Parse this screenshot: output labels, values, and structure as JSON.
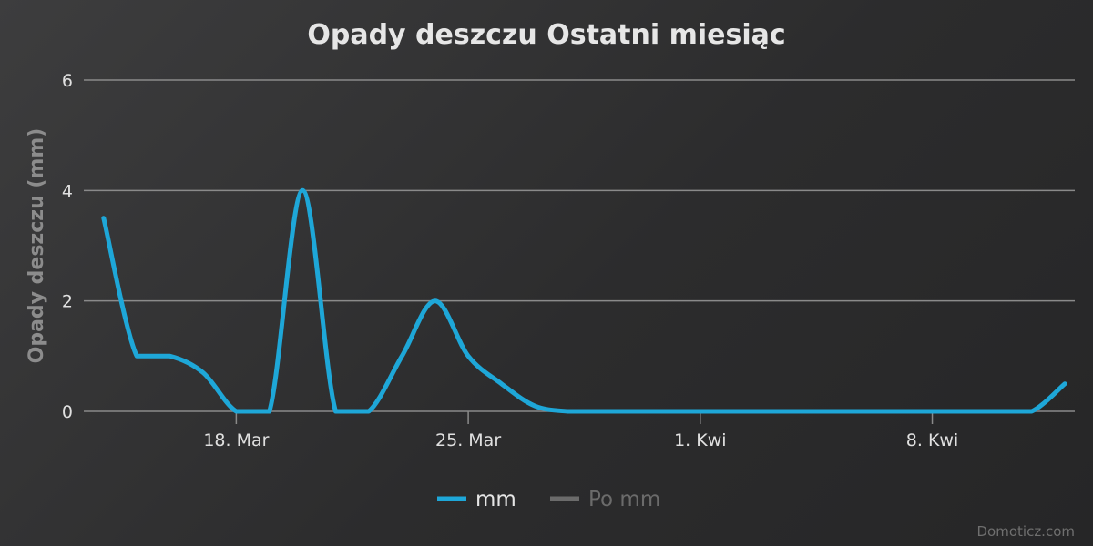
{
  "chart_data": {
    "type": "line",
    "title": "Opady deszczu Ostatni miesiąc",
    "ylabel": "Opady deszczu (mm)",
    "xlabel": "",
    "ylim": [
      0,
      6
    ],
    "yticks": [
      "0",
      "2",
      "4",
      "6"
    ],
    "xticks": [
      {
        "label": "18. Mar",
        "day": 18
      },
      {
        "label": "25. Mar",
        "day": 25
      },
      {
        "label": "1. Kwi",
        "day": 32
      },
      {
        "label": "8. Kwi",
        "day": 39
      }
    ],
    "xrange": [
      13.4,
      43.3
    ],
    "grid": true,
    "legend_position": "bottom-center",
    "series": [
      {
        "name": "mm",
        "color": "#1ea7d8",
        "visible": true,
        "x": [
          14,
          15,
          16,
          17,
          18,
          19,
          20,
          21,
          22,
          23,
          24,
          25,
          26,
          27,
          28,
          29,
          30,
          31,
          32,
          33,
          34,
          35,
          36,
          37,
          38,
          39,
          40,
          41,
          42,
          43
        ],
        "values": [
          3.5,
          1.0,
          1.0,
          0.7,
          0,
          0,
          4.0,
          0,
          0,
          1.0,
          2.0,
          1.0,
          0.5,
          0.1,
          0,
          0,
          0,
          0,
          0,
          0,
          0,
          0,
          0,
          0,
          0,
          0,
          0,
          0,
          0,
          0.5
        ]
      },
      {
        "name": "Po mm",
        "color": "#6b6b6b",
        "visible": false,
        "x": [],
        "values": []
      }
    ]
  },
  "credit": "Domoticz.com"
}
